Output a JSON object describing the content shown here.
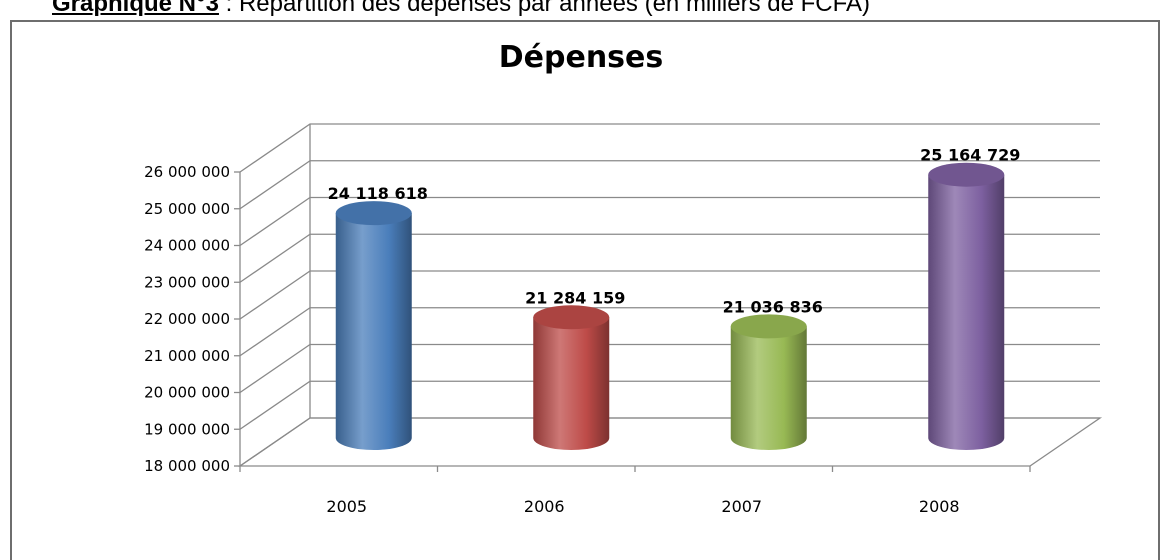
{
  "caption": {
    "label": "Graphique N°3",
    "text": " : Répartition des dépenses par années (en milliers de FCFA)"
  },
  "chart_data": {
    "type": "bar",
    "title": "Dépenses",
    "categories": [
      "2005",
      "2006",
      "2007",
      "2008"
    ],
    "values": [
      24118618,
      21284159,
      21036836,
      25164729
    ],
    "value_labels": [
      "24 118 618",
      "21 284 159",
      "21 036 836",
      "25 164 729"
    ],
    "colors": [
      "#4a7ebb",
      "#be4b48",
      "#98b954",
      "#7d60a0"
    ],
    "ylim": [
      18000000,
      26000000
    ],
    "yticks": [
      "18 000 000",
      "19 000 000",
      "20 000 000",
      "21 000 000",
      "22 000 000",
      "23 000 000",
      "24 000 000",
      "25 000 000",
      "26 000 000"
    ],
    "grid": true,
    "legend": "none",
    "style": "3d-cylinder"
  }
}
